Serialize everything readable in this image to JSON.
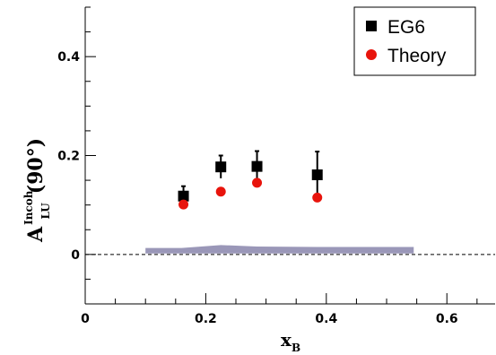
{
  "chart_data": {
    "type": "scatter",
    "title": "",
    "ylabel": {
      "main": "A",
      "sup": "Incoh",
      "sub": "LU",
      "suffix": "(90°)"
    },
    "xlabel": {
      "main": "x",
      "sub": "B"
    },
    "xlim": [
      0,
      0.68
    ],
    "ylim": [
      -0.1,
      0.5
    ],
    "x_ticks": [
      {
        "v": 0,
        "label": "0"
      },
      {
        "v": 0.2,
        "label": "0.2"
      },
      {
        "v": 0.4,
        "label": "0.4"
      },
      {
        "v": 0.6,
        "label": "0.6"
      }
    ],
    "y_ticks": [
      {
        "v": 0,
        "label": "0"
      },
      {
        "v": 0.2,
        "label": "0.2"
      },
      {
        "v": 0.4,
        "label": "0.4"
      }
    ],
    "zero_line": true,
    "legend_position": "top-right",
    "series": [
      {
        "name": "EG6",
        "marker": "square",
        "color": "#000000",
        "points": [
          {
            "x": 0.163,
            "y": 0.118,
            "err": 0.02
          },
          {
            "x": 0.225,
            "y": 0.177,
            "err": 0.023
          },
          {
            "x": 0.285,
            "y": 0.178,
            "err": 0.031
          },
          {
            "x": 0.385,
            "y": 0.161,
            "err": 0.047
          }
        ]
      },
      {
        "name": "Theory",
        "marker": "circle",
        "color": "#e8140c",
        "points": [
          {
            "x": 0.163,
            "y": 0.101
          },
          {
            "x": 0.225,
            "y": 0.127
          },
          {
            "x": 0.285,
            "y": 0.145
          },
          {
            "x": 0.385,
            "y": 0.115
          }
        ]
      }
    ],
    "systematic_band": {
      "color": "#9a97b8",
      "x": [
        0.1,
        0.16,
        0.225,
        0.285,
        0.385,
        0.545
      ],
      "upper": [
        0.013,
        0.013,
        0.019,
        0.016,
        0.015,
        0.015
      ],
      "lower": [
        0.002,
        0.002,
        0.002,
        0.002,
        0.002,
        0.002
      ]
    }
  }
}
